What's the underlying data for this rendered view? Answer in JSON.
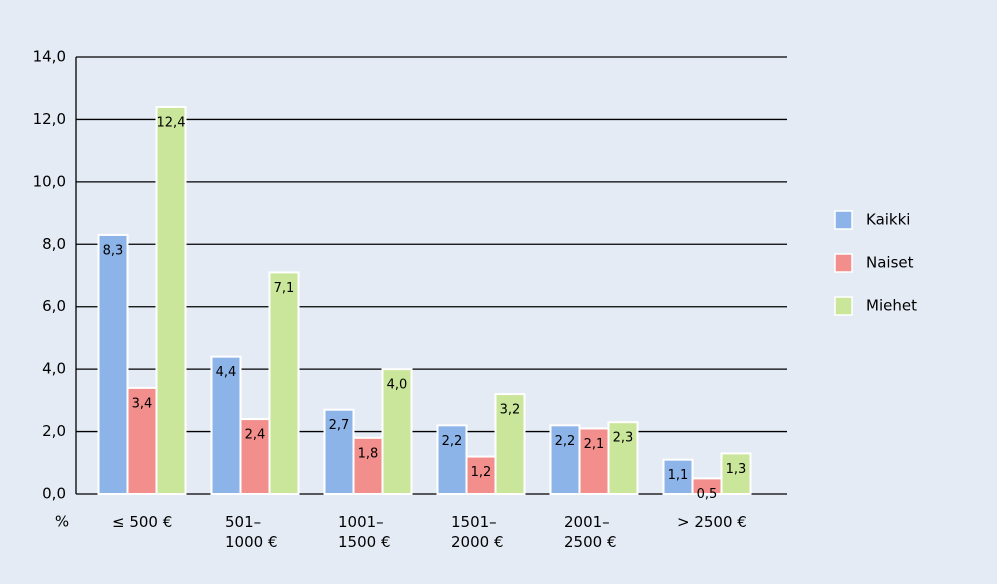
{
  "chart_data": {
    "type": "bar",
    "y_label": "%",
    "categories": [
      "≤ 500 €",
      "501–\n1000 €",
      "1001–\n1500 €",
      "1501–\n2000 €",
      "2001–\n2500 €",
      "> 2500 €"
    ],
    "series": [
      {
        "name": "Kaikki",
        "color": "#8db4e8",
        "values": [
          8.3,
          4.4,
          2.7,
          2.2,
          2.2,
          1.1
        ],
        "value_labels": [
          "8,3",
          "4,4",
          "2,7",
          "2,2",
          "2,2",
          "1,1"
        ]
      },
      {
        "name": "Naiset",
        "color": "#f28f8c",
        "values": [
          3.4,
          2.4,
          1.8,
          1.2,
          2.1,
          0.5
        ],
        "value_labels": [
          "3,4",
          "2,4",
          "1,8",
          "1,2",
          "2,1",
          "0,5"
        ]
      },
      {
        "name": "Miehet",
        "color": "#c9e69b",
        "values": [
          12.4,
          7.1,
          4.0,
          3.2,
          2.3,
          1.3
        ],
        "value_labels": [
          "12,4",
          "7,1",
          "4,0",
          "3,2",
          "2,3",
          "1,3"
        ]
      }
    ],
    "ylim": [
      0,
      14
    ],
    "yticks": [
      {
        "value": 0,
        "label": "0,0"
      },
      {
        "value": 2,
        "label": "2,0"
      },
      {
        "value": 4,
        "label": "4,0"
      },
      {
        "value": 6,
        "label": "6,0"
      },
      {
        "value": 8,
        "label": "8,0"
      },
      {
        "value": 10,
        "label": "10,0"
      },
      {
        "value": 12,
        "label": "12,0"
      },
      {
        "value": 14,
        "label": "14,0"
      }
    ],
    "grid": true,
    "legend": "right"
  }
}
